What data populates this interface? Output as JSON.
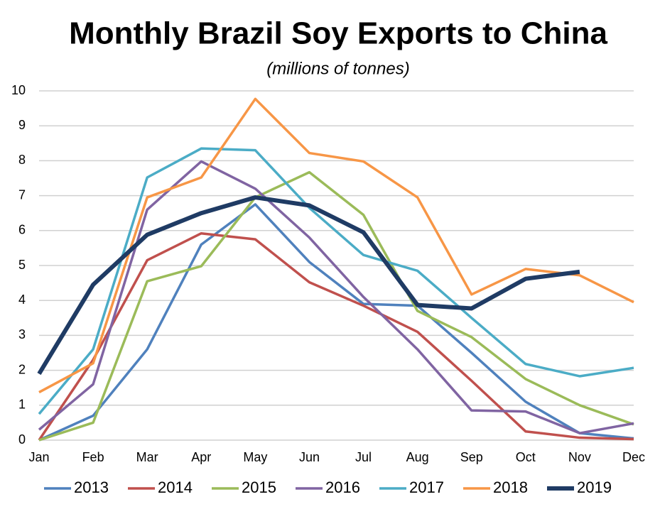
{
  "chart_data": {
    "type": "line",
    "title": "Monthly Brazil Soy Exports to China",
    "subtitle": "(millions of tonnes)",
    "categories": [
      "Jan",
      "Feb",
      "Mar",
      "Apr",
      "May",
      "Jun",
      "Jul",
      "Aug",
      "Sep",
      "Oct",
      "Nov",
      "Dec"
    ],
    "series": [
      {
        "name": "2013",
        "color": "#4f81bd",
        "values": [
          0,
          0.7,
          2.6,
          5.6,
          6.75,
          5.1,
          3.9,
          3.85,
          2.5,
          1.1,
          0.2,
          0.05
        ]
      },
      {
        "name": "2014",
        "color": "#c0504d",
        "values": [
          0,
          2.3,
          5.15,
          5.92,
          5.75,
          4.52,
          3.85,
          3.1,
          1.7,
          0.25,
          0.07,
          0.03
        ]
      },
      {
        "name": "2015",
        "color": "#9bbb59",
        "values": [
          0,
          0.5,
          4.55,
          4.98,
          6.95,
          7.67,
          6.45,
          3.7,
          2.95,
          1.75,
          1.0,
          0.45
        ]
      },
      {
        "name": "2016",
        "color": "#8064a2",
        "values": [
          0.3,
          1.6,
          6.6,
          7.98,
          7.2,
          5.8,
          4.1,
          2.6,
          0.85,
          0.82,
          0.2,
          0.48
        ]
      },
      {
        "name": "2017",
        "color": "#4bacc6",
        "values": [
          0.75,
          2.6,
          7.52,
          8.35,
          8.3,
          6.65,
          5.3,
          4.85,
          3.5,
          2.18,
          1.83,
          2.07
        ]
      },
      {
        "name": "2018",
        "color": "#f79646",
        "values": [
          1.37,
          2.2,
          6.95,
          7.52,
          9.77,
          8.22,
          7.98,
          6.95,
          4.17,
          4.9,
          4.72,
          3.95
        ]
      },
      {
        "name": "2019",
        "color": "#1f3b64",
        "values": [
          1.9,
          4.45,
          5.88,
          6.5,
          6.95,
          6.72,
          5.95,
          3.87,
          3.77,
          4.62,
          4.82,
          null
        ]
      }
    ],
    "ylim": [
      0,
      10
    ],
    "yticks": [
      0,
      1,
      2,
      3,
      4,
      5,
      6,
      7,
      8,
      9,
      10
    ],
    "grid": true,
    "legend": "bottom"
  }
}
